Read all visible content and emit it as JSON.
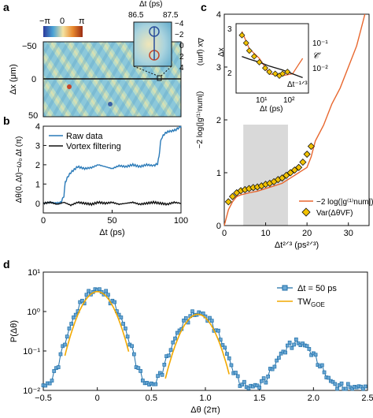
{
  "panel_labels": {
    "a": "a",
    "b": "b",
    "c": "c",
    "d": "d"
  },
  "colors": {
    "raw": "#2a7ab8",
    "vortex": "#111111",
    "orange": "#e8672e",
    "marker_fill": "#f2c200",
    "square_edge": "#1f6fa8",
    "tw": "#f2a900",
    "shade": "#d9d9d9"
  },
  "panel_a": {
    "colorbar": {
      "ticks": [
        "−π",
        "0",
        "π"
      ]
    },
    "ylabel": "Δx (μm)",
    "yticks": [
      "−50",
      "0",
      "50"
    ],
    "inset": {
      "xlabel": "Δt (ps)",
      "xticks": [
        "86.5",
        "87.5"
      ],
      "ylabel": "Δx (μm)",
      "yticks": [
        "−4",
        "−2",
        "0",
        "2",
        "4"
      ]
    }
  },
  "panel_b": {
    "chart_data": {
      "type": "line",
      "xlabel": "Δt (ps)",
      "ylabel": "Δθ(0, Δt)−ω₀ Δt (π)",
      "xlim": [
        0,
        100
      ],
      "ylim": [
        -0.5,
        4
      ],
      "xticks": [
        "0",
        "50",
        "100"
      ],
      "yticks": [
        "0",
        "1",
        "2",
        "3",
        "4"
      ],
      "legend": "top-left",
      "series": [
        {
          "name": "Raw data",
          "x": [
            0,
            5,
            10,
            13,
            15,
            16,
            18,
            20,
            25,
            30,
            35,
            40,
            45,
            50,
            55,
            60,
            65,
            70,
            75,
            80,
            83,
            84,
            85,
            86,
            88,
            90,
            93,
            96,
            98,
            100
          ],
          "y": [
            0.0,
            0.05,
            0.0,
            0.05,
            0.4,
            1.1,
            1.4,
            1.6,
            1.9,
            1.8,
            1.85,
            2.0,
            1.9,
            1.8,
            1.95,
            1.9,
            2.0,
            1.9,
            2.0,
            1.95,
            2.05,
            2.4,
            3.1,
            3.4,
            3.6,
            3.7,
            3.75,
            3.8,
            3.9,
            4.0
          ]
        },
        {
          "name": "Vortex filtering",
          "x": [
            0,
            5,
            10,
            15,
            20,
            25,
            30,
            35,
            40,
            45,
            50,
            55,
            60,
            65,
            70,
            75,
            80,
            85,
            90,
            95,
            100
          ],
          "y": [
            0.0,
            0.05,
            -0.05,
            0.05,
            -0.1,
            0.05,
            0.0,
            -0.05,
            0.05,
            0.0,
            0.05,
            -0.05,
            0.0,
            0.05,
            -0.05,
            0.0,
            0.05,
            0.0,
            -0.05,
            0.05,
            0.0
          ]
        }
      ]
    }
  },
  "panel_c": {
    "chart_data": {
      "type": "line",
      "xlabel": "Δt²ᐟ³ (ps²ᐟ³)",
      "ylabel": "−2 log(|g⁽¹⁾num|)",
      "xlim": [
        0,
        35
      ],
      "ylim": [
        0,
        4
      ],
      "xticks": [
        "0",
        "10",
        "20",
        "30"
      ],
      "yticks": [
        "0",
        "1",
        "2",
        "3",
        "4"
      ],
      "shaded_region": [
        4.6,
        15.4
      ],
      "legend": "bottom-right",
      "series": [
        {
          "name": "−2 log(|g⁽¹⁾num|)",
          "x": [
            0,
            1,
            2,
            3,
            4,
            5,
            6,
            8,
            10,
            12,
            14,
            16,
            18,
            20,
            21,
            22,
            24,
            26,
            28,
            30,
            32,
            33,
            34
          ],
          "y": [
            0.0,
            0.3,
            0.45,
            0.55,
            0.58,
            0.6,
            0.62,
            0.65,
            0.7,
            0.75,
            0.8,
            0.9,
            1.0,
            1.1,
            1.3,
            1.6,
            1.9,
            2.3,
            2.6,
            3.0,
            3.4,
            3.7,
            4.0
          ]
        },
        {
          "name": "Var(ΔθVF)",
          "x": [
            1,
            2,
            3,
            4,
            5,
            6,
            7,
            8,
            9,
            10,
            11,
            12,
            13,
            14,
            15,
            16,
            17,
            18,
            19,
            20,
            21
          ],
          "y": [
            0.45,
            0.55,
            0.62,
            0.66,
            0.68,
            0.7,
            0.72,
            0.73,
            0.75,
            0.78,
            0.8,
            0.83,
            0.87,
            0.9,
            0.95,
            1.0,
            1.05,
            1.1,
            1.2,
            1.35,
            1.5
          ]
        }
      ]
    },
    "inset": {
      "xlabel": "Δt (ps)",
      "ylabel": "Δx",
      "xticks": [
        "10¹",
        "10²"
      ],
      "yticks_left": [
        "2",
        "3"
      ],
      "yticks_right": [
        "10⁻¹",
        "10⁻²"
      ],
      "annotation_mid": "Δt⁻¹ᐟ³",
      "annotation_right": "𝒞̃",
      "chart_data": {
        "type": "line",
        "series": [
          {
            "name": "orange",
            "x": [
              3,
              5,
              10,
              20,
              50,
              100,
              200
            ],
            "y": [
              3.5,
              3.05,
              2.8,
              2.4,
              2.35,
              2.4,
              2.8
            ]
          },
          {
            "name": "black",
            "x": [
              3,
              5,
              10,
              20,
              50,
              100,
              200
            ],
            "y": [
              2.85,
              2.78,
              2.7,
              2.6,
              2.5,
              2.4,
              2.3
            ]
          },
          {
            "name": "markers",
            "x": [
              3,
              4,
              5,
              7,
              10,
              15,
              20,
              30,
              40,
              50,
              70
            ],
            "y": [
              3.4,
              3.2,
              3.0,
              2.85,
              2.7,
              2.55,
              2.45,
              2.4,
              2.35,
              2.4,
              2.45
            ]
          }
        ]
      }
    }
  },
  "panel_d": {
    "chart_data": {
      "type": "line",
      "xlabel": "Δθ (2π)",
      "ylabel": "P(Δθ)",
      "xlim": [
        -0.5,
        2.5
      ],
      "ylim_log10": [
        -2,
        1
      ],
      "xticks": [
        "−0.5",
        "0",
        "0.5",
        "1.0",
        "1.5",
        "2.0",
        "2.5"
      ],
      "yticks": [
        "10⁻²",
        "10⁻¹",
        "10⁰",
        "10¹"
      ],
      "legend": "top-right",
      "series": [
        {
          "name": "Δt = 50 ps",
          "peaks": [
            0.0,
            0.93,
            1.85
          ],
          "peak_values": [
            3.5,
            0.9,
            0.15
          ]
        },
        {
          "name": "TW",
          "name_sub": "GOE",
          "peaks": [
            0.0,
            0.93
          ],
          "peak_values": [
            3.2,
            0.85
          ]
        }
      ]
    }
  }
}
